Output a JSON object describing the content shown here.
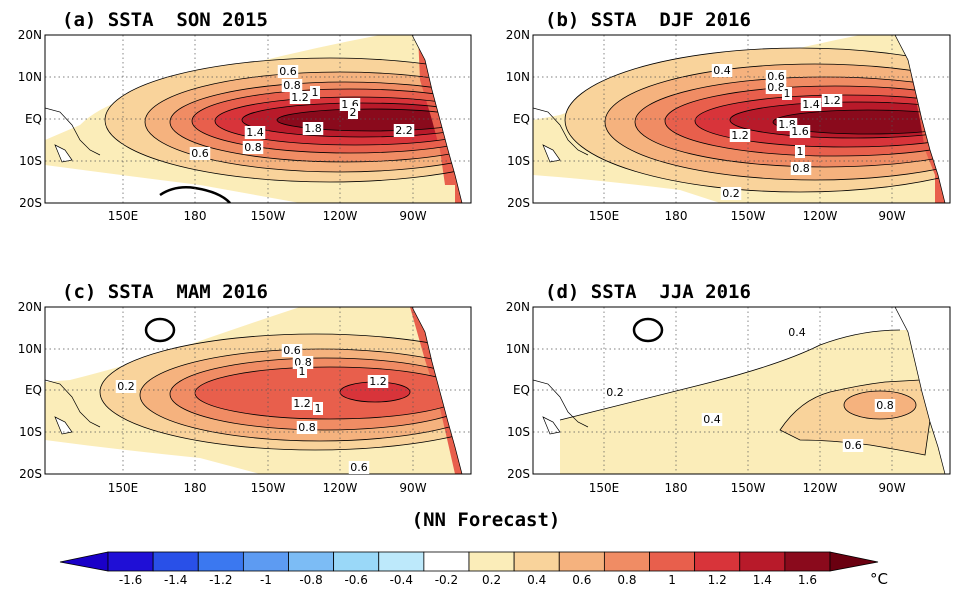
{
  "figure": {
    "footer": "(NN Forecast)",
    "colorbar": {
      "unit": "°C",
      "ticks": [
        "-1.6",
        "-1.4",
        "-1.2",
        "-1",
        "-0.8",
        "-0.6",
        "-0.4",
        "-0.2",
        "0.2",
        "0.4",
        "0.6",
        "0.8",
        "1",
        "1.2",
        "1.4",
        "1.6"
      ],
      "colors": [
        "#1f0fd6",
        "#2950e8",
        "#3b78f0",
        "#5d9bf2",
        "#7cbcf5",
        "#9ad8f8",
        "#bde9fb",
        "#ffffff",
        "#fbedb9",
        "#f9d39b",
        "#f5b27e",
        "#f08c64",
        "#e85f4c",
        "#d8343a",
        "#b81a2a",
        "#8a0a1c"
      ],
      "neg_arrow_color": "#1a00c8",
      "pos_arrow_color": "#6a0010"
    },
    "axes": {
      "lat_labels": [
        "20N",
        "10N",
        "EQ",
        "10S",
        "20S"
      ],
      "lon_labels": [
        "150E",
        "180",
        "150W",
        "120W",
        "90W"
      ]
    }
  },
  "panels": [
    {
      "title": "(a) SSTA  SON 2015",
      "peak_color": "#8a0a1c",
      "labels": [
        "0.6",
        "0.8",
        "1.2",
        "1",
        "1.6",
        "2",
        "1.4",
        "1.8",
        "2.2",
        "0.6",
        "0.8"
      ]
    },
    {
      "title": "(b) SSTA  DJF 2016",
      "peak_color": "#8a0a1c",
      "labels": [
        "0.4",
        "0.6",
        "0.8",
        "1",
        "1.2",
        "1.4",
        "1.8",
        "1.6",
        "1.2",
        "1",
        "0.8",
        "0.2"
      ]
    },
    {
      "title": "(c) SSTA  MAM 2016",
      "peak_color": "#d8343a",
      "labels": [
        "0.6",
        "0.8",
        "1",
        "0.2",
        "1.2",
        "1.2",
        "1",
        "0.8",
        "0.6"
      ]
    },
    {
      "title": "(d) SSTA  JJA 2016",
      "peak_color": "#f08c64",
      "labels": [
        "0.4",
        "0.2",
        "0.8",
        "0.4",
        "0.6"
      ]
    }
  ]
}
